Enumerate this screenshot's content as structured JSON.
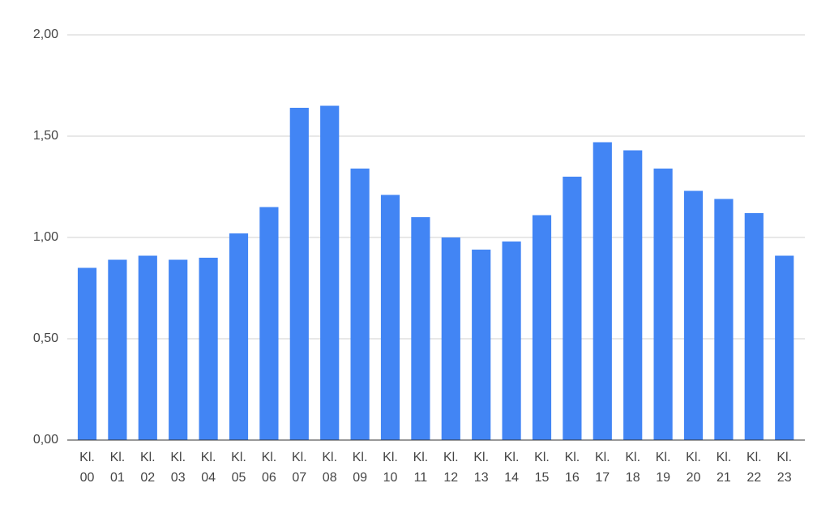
{
  "chart_data": {
    "type": "bar",
    "categories": [
      "Kl. 00",
      "Kl. 01",
      "Kl. 02",
      "Kl. 03",
      "Kl. 04",
      "Kl. 05",
      "Kl. 06",
      "Kl. 07",
      "Kl. 08",
      "Kl. 09",
      "Kl. 10",
      "Kl. 11",
      "Kl. 12",
      "Kl. 13",
      "Kl. 14",
      "Kl. 15",
      "Kl. 16",
      "Kl. 17",
      "Kl. 18",
      "Kl. 19",
      "Kl. 20",
      "Kl. 21",
      "Kl. 22",
      "Kl. 23"
    ],
    "values": [
      0.85,
      0.89,
      0.91,
      0.89,
      0.9,
      1.02,
      1.15,
      1.64,
      1.65,
      1.34,
      1.21,
      1.1,
      1.0,
      0.94,
      0.98,
      1.11,
      1.3,
      1.47,
      1.43,
      1.34,
      1.23,
      1.19,
      1.12,
      0.91
    ],
    "color": "#4285f4",
    "ylim": [
      0,
      2
    ],
    "yticks": [
      {
        "value": 0,
        "label": "0,00"
      },
      {
        "value": 0.5,
        "label": "0,50"
      },
      {
        "value": 1,
        "label": "1,00"
      },
      {
        "value": 1.5,
        "label": "1,50"
      },
      {
        "value": 2,
        "label": "2,00"
      }
    ],
    "grid": true
  }
}
